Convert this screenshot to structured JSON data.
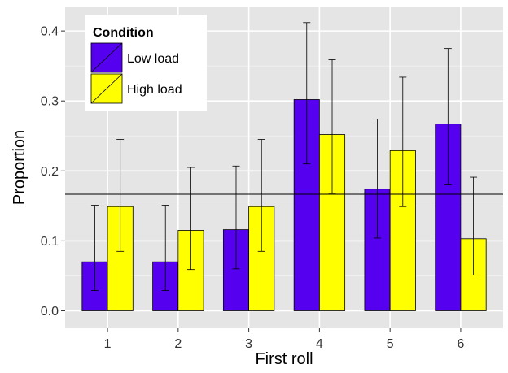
{
  "chart_data": {
    "type": "bar",
    "xlabel": "First roll",
    "ylabel": "Proportion",
    "categories": [
      "1",
      "2",
      "3",
      "4",
      "5",
      "6"
    ],
    "ylim": [
      -0.025,
      0.435
    ],
    "yticks": [
      0.0,
      0.1,
      0.2,
      0.3,
      0.4
    ],
    "ytick_labels": [
      "0.0",
      "0.1",
      "0.2",
      "0.3",
      "0.4"
    ],
    "reference_line": 0.1667,
    "grid": true,
    "legend": {
      "title": "Condition",
      "position": "top-left"
    },
    "series": [
      {
        "name": "Low load",
        "color": "#5500ee",
        "values": [
          0.07,
          0.07,
          0.116,
          0.302,
          0.174,
          0.267
        ],
        "error_low": [
          0.029,
          0.029,
          0.06,
          0.21,
          0.104,
          0.18
        ],
        "error_high": [
          0.151,
          0.151,
          0.207,
          0.412,
          0.274,
          0.375
        ]
      },
      {
        "name": "High load",
        "color": "#ffff00",
        "values": [
          0.149,
          0.115,
          0.149,
          0.252,
          0.229,
          0.103
        ],
        "error_low": [
          0.085,
          0.059,
          0.085,
          0.168,
          0.149,
          0.051
        ],
        "error_high": [
          0.245,
          0.205,
          0.245,
          0.359,
          0.334,
          0.191
        ]
      }
    ]
  }
}
